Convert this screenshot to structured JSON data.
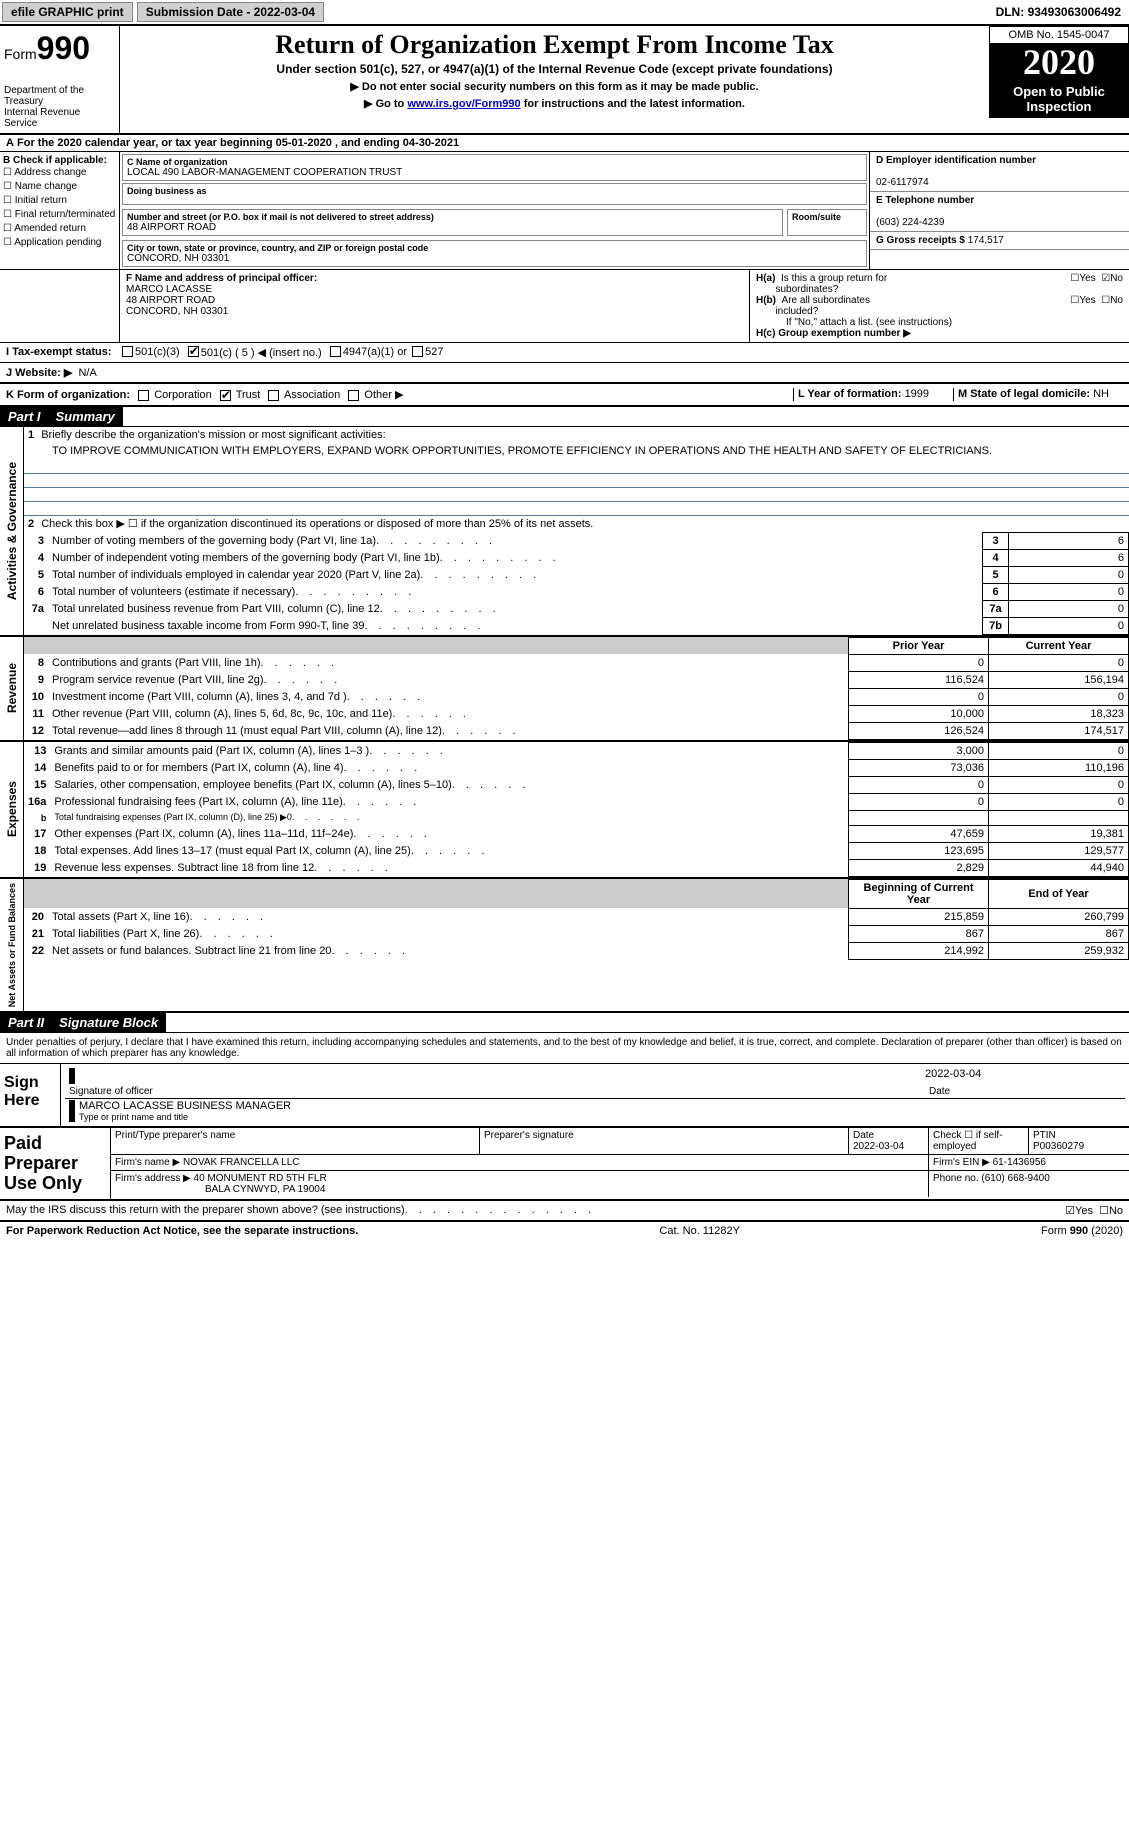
{
  "topbar": {
    "efile_btn": "efile GRAPHIC print",
    "subdate_label": "Submission Date - ",
    "subdate": "2022-03-04",
    "dln_label": "DLN: ",
    "dln": "93493063006492"
  },
  "header": {
    "form_prefix": "Form",
    "form_num": "990",
    "dept1": "Department of the Treasury",
    "dept2": "Internal Revenue Service",
    "title": "Return of Organization Exempt From Income Tax",
    "subtitle": "Under section 501(c), 527, or 4947(a)(1) of the Internal Revenue Code (except private foundations)",
    "arrow1": "▶ Do not enter social security numbers on this form as it may be made public.",
    "arrow2_pre": "▶ Go to ",
    "arrow2_link": "www.irs.gov/Form990",
    "arrow2_post": " for instructions and the latest information.",
    "omb": "OMB No. 1545-0047",
    "year": "2020",
    "public1": "Open to Public",
    "public2": "Inspection"
  },
  "periodline": {
    "a": "A",
    "text1": "For the 2020 calendar year, or tax year beginning ",
    "begin": "05-01-2020",
    "text2": " , and ending ",
    "end": "04-30-2021"
  },
  "colB": {
    "label": "B Check if applicable:",
    "opts": [
      "Address change",
      "Name change",
      "Initial return",
      "Final return/terminated",
      "Amended return",
      "Application pending"
    ]
  },
  "colC": {
    "name_label": "C Name of organization",
    "name": "LOCAL 490 LABOR-MANAGEMENT COOPERATION TRUST",
    "dba_label": "Doing business as",
    "addr_label": "Number and street (or P.O. box if mail is not delivered to street address)",
    "room_label": "Room/suite",
    "addr": "48 AIRPORT ROAD",
    "city_label": "City or town, state or province, country, and ZIP or foreign postal code",
    "city": "CONCORD, NH  03301"
  },
  "colD": {
    "ein_label": "D Employer identification number",
    "ein": "02-6117974",
    "phone_label": "E Telephone number",
    "phone": "(603) 224-4239",
    "gross_label": "G Gross receipts $ ",
    "gross": "174,517"
  },
  "rowF": {
    "label": "F Name and address of principal officer:",
    "name": "MARCO LACASSE",
    "addr1": "48 AIRPORT ROAD",
    "addr2": "CONCORD, NH  03301"
  },
  "rowH": {
    "ha_label": "H(a)  Is this a group return for subordinates?",
    "hb_label": "H(b)  Are all subordinates included?",
    "hb_note": "If \"No,\" attach a list. (see instructions)",
    "hc_label": "H(c)  Group exemption number ▶",
    "yes": "Yes",
    "no": "No"
  },
  "rowI": {
    "label": "I  Tax-exempt status:",
    "o1": "501(c)(3)",
    "o2": "501(c) ( 5 ) ◀ (insert no.)",
    "o3": "4947(a)(1) or",
    "o4": "527"
  },
  "rowJ": {
    "label": "J  Website: ▶",
    "val": "N/A"
  },
  "rowK": {
    "label": "K Form of organization:",
    "o1": "Corporation",
    "o2": "Trust",
    "o3": "Association",
    "o4": "Other ▶"
  },
  "rowL": {
    "label": "L Year of formation: ",
    "val": "1999"
  },
  "rowM": {
    "label": "M State of legal domicile: ",
    "val": "NH"
  },
  "part1": {
    "num": "Part I",
    "title": "Summary"
  },
  "summary": {
    "l1_label": "Briefly describe the organization's mission or most significant activities:",
    "l1_text": "TO IMPROVE COMMUNICATION WITH EMPLOYERS, EXPAND WORK OPPORTUNITIES, PROMOTE EFFICIENCY IN OPERATIONS AND THE HEALTH AND SAFETY OF ELECTRICIANS.",
    "l2": "Check this box ▶ ☐  if the organization discontinued its operations or disposed of more than 25% of its net assets.",
    "headers": {
      "prior": "Prior Year",
      "current": "Current Year",
      "begin": "Beginning of Current Year",
      "end": "End of Year"
    },
    "lines_gov": [
      {
        "n": "3",
        "t": "Number of voting members of the governing body (Part VI, line 1a)",
        "r": "3",
        "v": "6"
      },
      {
        "n": "4",
        "t": "Number of independent voting members of the governing body (Part VI, line 1b)",
        "r": "4",
        "v": "6"
      },
      {
        "n": "5",
        "t": "Total number of individuals employed in calendar year 2020 (Part V, line 2a)",
        "r": "5",
        "v": "0"
      },
      {
        "n": "6",
        "t": "Total number of volunteers (estimate if necessary)",
        "r": "6",
        "v": "0"
      },
      {
        "n": "7a",
        "t": "Total unrelated business revenue from Part VIII, column (C), line 12",
        "r": "7a",
        "v": "0"
      },
      {
        "n": "",
        "t": "Net unrelated business taxable income from Form 990-T, line 39",
        "r": "7b",
        "v": "0"
      }
    ],
    "lines_rev": [
      {
        "n": "8",
        "t": "Contributions and grants (Part VIII, line 1h)",
        "p": "0",
        "c": "0"
      },
      {
        "n": "9",
        "t": "Program service revenue (Part VIII, line 2g)",
        "p": "116,524",
        "c": "156,194"
      },
      {
        "n": "10",
        "t": "Investment income (Part VIII, column (A), lines 3, 4, and 7d )",
        "p": "0",
        "c": "0"
      },
      {
        "n": "11",
        "t": "Other revenue (Part VIII, column (A), lines 5, 6d, 8c, 9c, 10c, and 11e)",
        "p": "10,000",
        "c": "18,323"
      },
      {
        "n": "12",
        "t": "Total revenue—add lines 8 through 11 (must equal Part VIII, column (A), line 12)",
        "p": "126,524",
        "c": "174,517"
      }
    ],
    "lines_exp": [
      {
        "n": "13",
        "t": "Grants and similar amounts paid (Part IX, column (A), lines 1–3 )",
        "p": "3,000",
        "c": "0"
      },
      {
        "n": "14",
        "t": "Benefits paid to or for members (Part IX, column (A), line 4)",
        "p": "73,036",
        "c": "110,196"
      },
      {
        "n": "15",
        "t": "Salaries, other compensation, employee benefits (Part IX, column (A), lines 5–10)",
        "p": "0",
        "c": "0"
      },
      {
        "n": "16a",
        "t": "Professional fundraising fees (Part IX, column (A), line 11e)",
        "p": "0",
        "c": "0"
      },
      {
        "n": "b",
        "t": "Total fundraising expenses (Part IX, column (D), line 25) ▶0",
        "p": "",
        "c": "",
        "shade": true,
        "small": true
      },
      {
        "n": "17",
        "t": "Other expenses (Part IX, column (A), lines 11a–11d, 11f–24e)",
        "p": "47,659",
        "c": "19,381"
      },
      {
        "n": "18",
        "t": "Total expenses. Add lines 13–17 (must equal Part IX, column (A), line 25)",
        "p": "123,695",
        "c": "129,577"
      },
      {
        "n": "19",
        "t": "Revenue less expenses. Subtract line 18 from line 12",
        "p": "2,829",
        "c": "44,940"
      }
    ],
    "lines_net": [
      {
        "n": "20",
        "t": "Total assets (Part X, line 16)",
        "p": "215,859",
        "c": "260,799"
      },
      {
        "n": "21",
        "t": "Total liabilities (Part X, line 26)",
        "p": "867",
        "c": "867"
      },
      {
        "n": "22",
        "t": "Net assets or fund balances. Subtract line 21 from line 20",
        "p": "214,992",
        "c": "259,932"
      }
    ]
  },
  "sides": {
    "gov": "Activities & Governance",
    "rev": "Revenue",
    "exp": "Expenses",
    "net": "Net Assets or Fund Balances"
  },
  "part2": {
    "num": "Part II",
    "title": "Signature Block"
  },
  "sig": {
    "penalty": "Under penalties of perjury, I declare that I have examined this return, including accompanying schedules and statements, and to the best of my knowledge and belief, it is true, correct, and complete. Declaration of preparer (other than officer) is based on all information of which preparer has any knowledge.",
    "sign_here": "Sign Here",
    "sig_officer": "Signature of officer",
    "date_lbl": "Date",
    "date_val": "2022-03-04",
    "name_title": "MARCO LACASSE  BUSINESS MANAGER",
    "name_title_lbl": "Type or print name and title"
  },
  "paid": {
    "side": "Paid Preparer Use Only",
    "h1": "Print/Type preparer's name",
    "h2": "Preparer's signature",
    "h3": "Date",
    "h4": "Check ☐ if self-employed",
    "h5": "PTIN",
    "date": "2022-03-04",
    "ptin": "P00360279",
    "firm_lbl": "Firm's name   ▶",
    "firm": "NOVAK FRANCELLA LLC",
    "ein_lbl": "Firm's EIN ▶",
    "ein": "61-1436956",
    "addr_lbl": "Firm's address ▶",
    "addr1": "40 MONUMENT RD 5TH FLR",
    "addr2": "BALA CYNWYD, PA  19004",
    "phone_lbl": "Phone no.",
    "phone": "(610) 668-9400"
  },
  "discuss": {
    "text": "May the IRS discuss this return with the preparer shown above? (see instructions)",
    "yes": "Yes",
    "no": "No"
  },
  "footer": {
    "left": "For Paperwork Reduction Act Notice, see the separate instructions.",
    "mid": "Cat. No. 11282Y",
    "right": "Form 990 (2020)"
  }
}
